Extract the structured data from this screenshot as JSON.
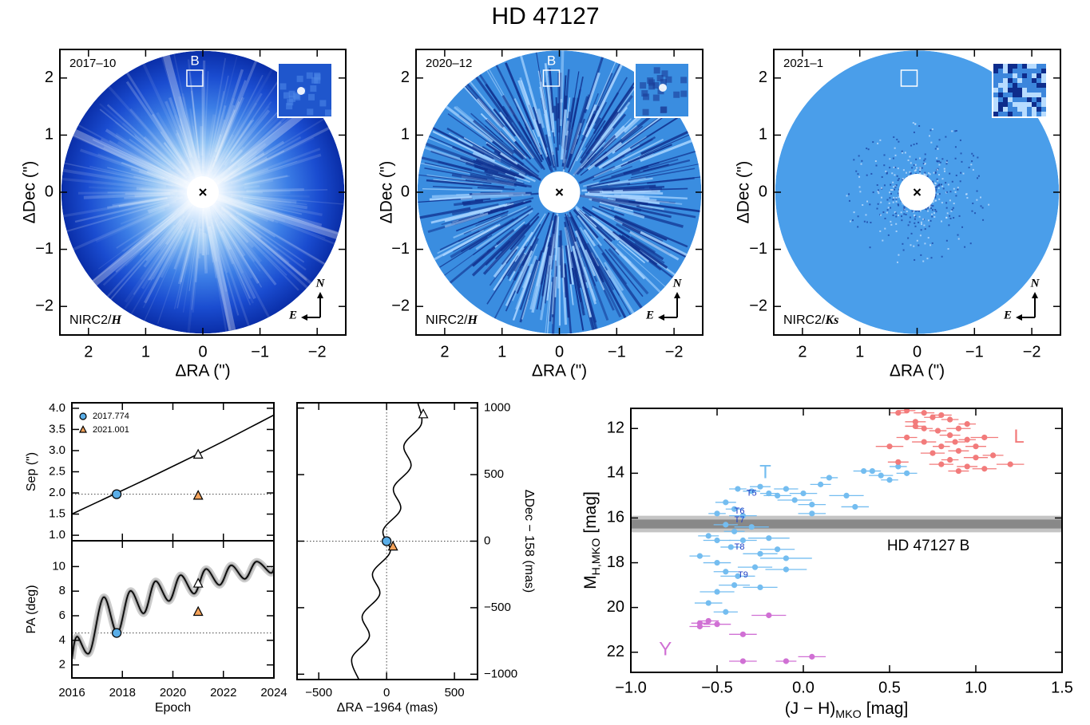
{
  "title": "HD 47127",
  "chart_data": [
    {
      "type": "image",
      "style": "glow",
      "epoch": "2017–10",
      "companion": "B",
      "instrument": "NIRC2/",
      "filter": "H",
      "compass_north": "N",
      "compass_east": "E",
      "xlabel": "ΔRA (\")",
      "ylabel": "ΔDec (\")",
      "xlim": [
        2.5,
        -2.5
      ],
      "ylim": [
        -2.5,
        2.5
      ],
      "xticks": [
        2,
        1,
        0,
        {
          "value": -1,
          "label": "−1"
        },
        {
          "value": -2,
          "label": "−2"
        }
      ],
      "yticks": [
        {
          "value": -2,
          "label": "−2"
        },
        {
          "value": -1,
          "label": "−1"
        },
        0,
        1,
        2
      ]
    },
    {
      "type": "image",
      "style": "speckle",
      "epoch": "2020–12",
      "companion": "B",
      "instrument": "NIRC2/",
      "filter": "H",
      "compass_north": "N",
      "compass_east": "E",
      "xlabel": "ΔRA (\")",
      "ylabel": "ΔDec (\")",
      "xlim": [
        2.5,
        -2.5
      ],
      "ylim": [
        -2.5,
        2.5
      ],
      "xticks": [
        2,
        1,
        0,
        {
          "value": -1,
          "label": "−1"
        },
        {
          "value": -2,
          "label": "−2"
        }
      ],
      "yticks": [
        {
          "value": -2,
          "label": "−2"
        },
        {
          "value": -1,
          "label": "−1"
        },
        0,
        1,
        2
      ]
    },
    {
      "type": "image",
      "style": "flat",
      "epoch": "2021–1",
      "instrument": "NIRC2/",
      "filter": "Ks",
      "compass_north": "N",
      "compass_east": "E",
      "xlabel": "ΔRA (\")",
      "ylabel": "ΔDec (\")",
      "xlim": [
        2.5,
        -2.5
      ],
      "ylim": [
        -2.5,
        2.5
      ],
      "xticks": [
        2,
        1,
        0,
        {
          "value": -1,
          "label": "−1"
        },
        {
          "value": -2,
          "label": "−2"
        }
      ],
      "yticks": [
        {
          "value": -2,
          "label": "−2"
        },
        {
          "value": -1,
          "label": "−1"
        },
        0,
        1,
        2
      ]
    },
    {
      "type": "line",
      "ylabel": "Sep (\")",
      "xlim": [
        2016,
        2024
      ],
      "ylim": [
        0.87,
        4.13
      ],
      "xticks": [
        2016,
        2018,
        2020,
        2022,
        2024
      ],
      "xtick_labels": false,
      "yticks": [
        {
          "value": 1,
          "label": "1.0"
        },
        {
          "value": 1.5,
          "label": "1.5"
        },
        {
          "value": 2,
          "label": "2.0"
        },
        {
          "value": 2.5,
          "label": "2.5"
        },
        {
          "value": 3,
          "label": "3.0"
        },
        {
          "value": 3.5,
          "label": "3.5"
        },
        {
          "value": 4,
          "label": "4.0"
        }
      ],
      "legend": "upper left",
      "reference_lines": "horizontal",
      "series": [
        {
          "color": "#000000",
          "x": [
            2016,
            2017,
            2018,
            2019,
            2020,
            2021,
            2022,
            2023,
            2024
          ],
          "values": [
            1.5,
            1.78,
            2.06,
            2.34,
            2.63,
            2.92,
            3.22,
            3.53,
            3.84
          ]
        },
        {
          "name": "2017.774",
          "marker": "circle",
          "color": "#5aaee8",
          "x": [
            2017.774
          ],
          "values": [
            1.97
          ]
        },
        {
          "name": "2021.001",
          "marker": "triangle",
          "color": "#f4a25a",
          "x": [
            2021.001
          ],
          "values": [
            1.93
          ]
        },
        {
          "marker": "open-triangle",
          "color": "#ffffff",
          "x": [
            2021.001
          ],
          "values": [
            2.9
          ]
        }
      ]
    },
    {
      "type": "line",
      "ylabel": "PA (deg)",
      "xlabel": "Epoch",
      "xlim": [
        2016,
        2024
      ],
      "ylim": [
        0.94,
        12.1
      ],
      "xticks": [
        2016,
        2018,
        2020,
        2022,
        2024
      ],
      "yticks": [
        2,
        4,
        6,
        8,
        10
      ],
      "reference_lines": "horizontal",
      "uncertainty_band": true,
      "series": [
        {
          "color": "#000000",
          "x": [
            2016,
            2016.2,
            2016.7,
            2017.25,
            2017.8,
            2018.3,
            2018.85,
            2019.3,
            2019.85,
            2020.3,
            2020.85,
            2021.3,
            2021.85,
            2022.3,
            2022.85,
            2023.3,
            2023.85,
            2024
          ],
          "values": [
            2.5,
            4.3,
            3.0,
            7.5,
            4.6,
            8.0,
            6.2,
            8.8,
            7.2,
            9.3,
            7.8,
            9.8,
            8.5,
            10.1,
            9.0,
            10.4,
            9.5,
            9.8
          ]
        },
        {
          "marker": "circle",
          "color": "#5aaee8",
          "x": [
            2017.774
          ],
          "values": [
            4.6
          ]
        },
        {
          "marker": "triangle",
          "color": "#f4a25a",
          "x": [
            2021.001
          ],
          "values": [
            6.3
          ]
        },
        {
          "marker": "open-triangle",
          "color": "#ffffff",
          "x": [
            2021.001
          ],
          "values": [
            8.6
          ]
        }
      ]
    },
    {
      "type": "line",
      "xlabel": "ΔRA −1964 (mas)",
      "ylabel": "ΔDec − 158 (mas)",
      "yaxis_side": "right",
      "xlim": [
        -660,
        670
      ],
      "ylim": [
        -1040,
        1040
      ],
      "xticks": [
        {
          "value": -500,
          "label": "−500"
        },
        0,
        500
      ],
      "yticks": [
        {
          "value": -1000,
          "label": "−1000"
        },
        {
          "value": -500,
          "label": "−500"
        },
        0,
        500,
        1000
      ],
      "reference_lines": "both",
      "series": [
        {
          "color": "#000000",
          "x": [
            -205,
            -256,
            -128,
            -179,
            -51,
            -103,
            26,
            -26,
            103,
            51,
            179,
            128,
            256,
            230
          ],
          "values": [
            -1040,
            -880,
            -720,
            -560,
            -400,
            -240,
            -80,
            80,
            240,
            400,
            560,
            720,
            880,
            1040
          ]
        },
        {
          "marker": "circle",
          "color": "#5aaee8",
          "x": [
            0
          ],
          "values": [
            0
          ]
        },
        {
          "marker": "triangle",
          "color": "#f4a25a",
          "x": [
            47
          ],
          "values": [
            -42
          ]
        },
        {
          "marker": "open-triangle",
          "color": "#ffffff",
          "x": [
            270
          ],
          "values": [
            952
          ]
        }
      ]
    },
    {
      "type": "scatter",
      "xlabel": {
        "main": "(J − H)",
        "sub": "MKO",
        "unit": "[mag]"
      },
      "ylabel": {
        "main": "M",
        "sub": "H,MKO",
        "unit": "[mag]"
      },
      "xlim": [
        -1,
        1.5
      ],
      "ylim": [
        11.1,
        22.9
      ],
      "invert_y": true,
      "xticks": [
        {
          "value": -1,
          "label": "−1.0"
        },
        {
          "value": -0.5,
          "label": "−0.5"
        },
        {
          "value": 0,
          "label": "0.0"
        },
        {
          "value": 0.5,
          "label": "0.5"
        },
        {
          "value": 1,
          "label": "1.0"
        },
        {
          "value": 1.5,
          "label": "1.5"
        }
      ],
      "yticks": [
        12,
        14,
        16,
        18,
        20,
        22
      ],
      "band": {
        "label": "HD 47127 B",
        "value": 16.27,
        "inner_err": 0.2,
        "outer_err": 0.37
      },
      "annotation_color": "#1c3cc4",
      "annotations": [
        {
          "text": "T5",
          "x": -0.3,
          "y": 14.9
        },
        {
          "text": "T6",
          "x": -0.37,
          "y": 15.7
        },
        {
          "text": "T7",
          "x": -0.37,
          "y": 16.1
        },
        {
          "text": "T8",
          "x": -0.37,
          "y": 17.3
        },
        {
          "text": "T9",
          "x": -0.35,
          "y": 18.55
        }
      ],
      "series": [
        {
          "name": "T",
          "color": "#74bdf0",
          "label_x": -0.22,
          "label_y": 14.0,
          "x": [
            -0.38,
            -0.3,
            -0.25,
            -0.2,
            -0.15,
            -0.1,
            -0.05,
            0.0,
            0.05,
            0.1,
            0.15,
            0.25,
            0.3,
            0.35,
            0.4,
            0.45,
            0.5,
            0.55,
            0.6,
            -0.45,
            -0.4,
            -0.35,
            -0.5,
            -0.45,
            -0.4,
            -0.3,
            -0.2,
            -0.5,
            -0.42,
            -0.35,
            -0.25,
            -0.15,
            -0.6,
            -0.5,
            -0.45,
            -0.38,
            -0.28,
            -0.1,
            -0.4,
            -0.25,
            -0.5,
            -0.55,
            -0.45,
            -0.1,
            0.05,
            -0.55
          ],
          "values": [
            14.7,
            14.8,
            14.6,
            14.9,
            15.0,
            14.7,
            15.2,
            14.9,
            15.4,
            14.5,
            14.2,
            15.0,
            15.5,
            13.9,
            13.9,
            14.1,
            14.3,
            13.7,
            14.0,
            15.3,
            15.6,
            15.9,
            15.8,
            16.3,
            16.6,
            16.4,
            16.9,
            17.0,
            17.3,
            17.0,
            17.6,
            17.4,
            17.7,
            18.0,
            18.4,
            18.6,
            18.2,
            18.3,
            19.0,
            19.1,
            19.3,
            19.8,
            20.2,
            17.8,
            15.8,
            16.8
          ],
          "xerr": [
            0.05,
            0.05,
            0.06,
            0.05,
            0.08,
            0.07,
            0.1,
            0.08,
            0.08,
            0.06,
            0.05,
            0.1,
            0.08,
            0.06,
            0.05,
            0.07,
            0.05,
            0.05,
            0.06,
            0.06,
            0.05,
            0.08,
            0.05,
            0.07,
            0.06,
            0.1,
            0.12,
            0.08,
            0.06,
            0.08,
            0.1,
            0.1,
            0.06,
            0.08,
            0.07,
            0.1,
            0.1,
            0.12,
            0.09,
            0.1,
            0.1,
            0.08,
            0.07,
            0.15,
            0.08,
            0.06
          ]
        },
        {
          "name": "L",
          "color": "#f27b7b",
          "label_x": 1.25,
          "label_y": 12.4,
          "x": [
            0.55,
            0.6,
            0.7,
            0.75,
            0.8,
            0.85,
            0.65,
            0.7,
            0.78,
            0.85,
            0.9,
            0.95,
            1.0,
            1.05,
            0.6,
            0.7,
            0.8,
            0.9,
            1.0,
            1.1,
            1.2,
            0.85,
            0.95,
            0.8,
            0.9,
            0.5,
            0.55,
            0.75,
            1.05,
            0.65,
            0.95,
            0.88
          ],
          "values": [
            11.3,
            11.2,
            11.3,
            11.5,
            11.4,
            11.6,
            11.7,
            12.0,
            12.1,
            12.3,
            12.0,
            12.5,
            12.8,
            12.4,
            12.4,
            12.6,
            12.8,
            13.0,
            13.3,
            13.2,
            13.6,
            13.4,
            13.7,
            13.6,
            13.9,
            12.8,
            13.5,
            13.1,
            13.8,
            11.9,
            11.8,
            12.6
          ],
          "xerr": [
            0.05,
            0.05,
            0.06,
            0.05,
            0.06,
            0.05,
            0.06,
            0.05,
            0.05,
            0.06,
            0.07,
            0.05,
            0.06,
            0.08,
            0.06,
            0.07,
            0.05,
            0.06,
            0.07,
            0.06,
            0.08,
            0.05,
            0.06,
            0.07,
            0.06,
            0.08,
            0.06,
            0.07,
            0.07,
            0.06,
            0.05,
            0.06
          ]
        },
        {
          "name": "Y",
          "color": "#d070d4",
          "label_x": -0.8,
          "label_y": 21.9,
          "x": [
            -0.6,
            -0.55,
            -0.6,
            -0.5,
            -0.2,
            -0.35,
            -0.35,
            -0.1,
            0.05
          ],
          "values": [
            20.7,
            20.6,
            20.85,
            20.75,
            20.35,
            21.2,
            22.4,
            22.4,
            22.2
          ],
          "xerr": [
            0.05,
            0.06,
            0.06,
            0.08,
            0.1,
            0.08,
            0.08,
            0.06,
            0.08
          ]
        }
      ]
    }
  ]
}
